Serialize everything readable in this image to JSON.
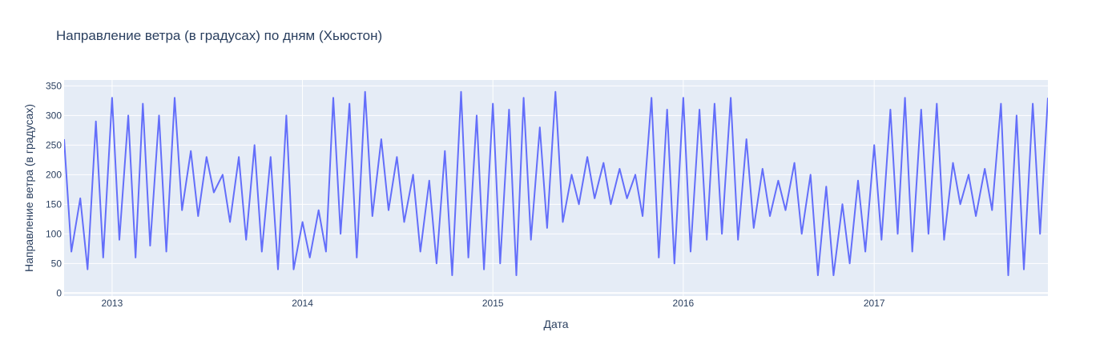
{
  "chart_data": {
    "type": "line",
    "title": "Направление ветра (в градусах) по дням (Хьюстон)",
    "xlabel": "Дата",
    "ylabel": "Направление ветра (в градусах)",
    "x_range": [
      "2012-10-01",
      "2017-11-30"
    ],
    "ylim": [
      -5,
      360
    ],
    "x_ticks": [
      {
        "date": "2013-01-01",
        "label": "2013"
      },
      {
        "date": "2014-01-01",
        "label": "2014"
      },
      {
        "date": "2015-01-01",
        "label": "2015"
      },
      {
        "date": "2016-01-01",
        "label": "2016"
      },
      {
        "date": "2017-01-01",
        "label": "2017"
      }
    ],
    "y_ticks": [
      0,
      50,
      100,
      150,
      200,
      250,
      300,
      350
    ],
    "grid": true,
    "line_color": "#636efa",
    "plot_background": "#e5ecf6",
    "series": [
      {
        "x": [
          "2012-10-01",
          "2012-10-15",
          "2012-11-01",
          "2012-11-15",
          "2012-12-01",
          "2012-12-15",
          "2013-01-01",
          "2013-01-15",
          "2013-02-01",
          "2013-02-15",
          "2013-03-01",
          "2013-03-15",
          "2013-04-01",
          "2013-04-15",
          "2013-05-01",
          "2013-05-15",
          "2013-06-01",
          "2013-06-15",
          "2013-07-01",
          "2013-07-15",
          "2013-08-01",
          "2013-08-15",
          "2013-09-01",
          "2013-09-15",
          "2013-10-01",
          "2013-10-15",
          "2013-11-01",
          "2013-11-15",
          "2013-12-01",
          "2013-12-15",
          "2014-01-01",
          "2014-01-15",
          "2014-02-01",
          "2014-02-15",
          "2014-03-01",
          "2014-03-15",
          "2014-04-01",
          "2014-04-15",
          "2014-05-01",
          "2014-05-15",
          "2014-06-01",
          "2014-06-15",
          "2014-07-01",
          "2014-07-15",
          "2014-08-01",
          "2014-08-15",
          "2014-09-01",
          "2014-09-15",
          "2014-10-01",
          "2014-10-15",
          "2014-11-01",
          "2014-11-15",
          "2014-12-01",
          "2014-12-15",
          "2015-01-01",
          "2015-01-15",
          "2015-02-01",
          "2015-02-15",
          "2015-03-01",
          "2015-03-15",
          "2015-04-01",
          "2015-04-15",
          "2015-05-01",
          "2015-05-15",
          "2015-06-01",
          "2015-06-15",
          "2015-07-01",
          "2015-07-15",
          "2015-08-01",
          "2015-08-15",
          "2015-09-01",
          "2015-09-15",
          "2015-10-01",
          "2015-10-15",
          "2015-11-01",
          "2015-11-15",
          "2015-12-01",
          "2015-12-15",
          "2016-01-01",
          "2016-01-15",
          "2016-02-01",
          "2016-02-15",
          "2016-03-01",
          "2016-03-15",
          "2016-04-01",
          "2016-04-15",
          "2016-05-01",
          "2016-05-15",
          "2016-06-01",
          "2016-06-15",
          "2016-07-01",
          "2016-07-15",
          "2016-08-01",
          "2016-08-15",
          "2016-09-01",
          "2016-09-15",
          "2016-10-01",
          "2016-10-15",
          "2016-11-01",
          "2016-11-15",
          "2016-12-01",
          "2016-12-15",
          "2017-01-01",
          "2017-01-15",
          "2017-02-01",
          "2017-02-15",
          "2017-03-01",
          "2017-03-15",
          "2017-04-01",
          "2017-04-15",
          "2017-05-01",
          "2017-05-15",
          "2017-06-01",
          "2017-06-15",
          "2017-07-01",
          "2017-07-15",
          "2017-08-01",
          "2017-08-15",
          "2017-09-01",
          "2017-09-15",
          "2017-10-01",
          "2017-10-15",
          "2017-11-01",
          "2017-11-15",
          "2017-11-30"
        ],
        "y": [
          260,
          70,
          160,
          40,
          290,
          60,
          330,
          90,
          300,
          60,
          320,
          80,
          300,
          70,
          330,
          140,
          240,
          130,
          230,
          170,
          200,
          120,
          230,
          90,
          250,
          70,
          230,
          40,
          300,
          40,
          120,
          60,
          140,
          70,
          330,
          100,
          320,
          60,
          340,
          130,
          260,
          140,
          230,
          120,
          200,
          70,
          190,
          50,
          240,
          30,
          340,
          60,
          300,
          40,
          320,
          50,
          310,
          30,
          330,
          90,
          280,
          110,
          340,
          120,
          200,
          150,
          230,
          160,
          220,
          150,
          210,
          160,
          200,
          130,
          330,
          60,
          310,
          50,
          330,
          70,
          310,
          90,
          320,
          100,
          330,
          90,
          260,
          110,
          210,
          130,
          190,
          140,
          220,
          100,
          200,
          30,
          180,
          30,
          150,
          50,
          190,
          70,
          250,
          90,
          310,
          100,
          330,
          70,
          310,
          100,
          320,
          90,
          220,
          150,
          200,
          130,
          210,
          140,
          320,
          30,
          300,
          40,
          320,
          100,
          330
        ]
      }
    ]
  }
}
